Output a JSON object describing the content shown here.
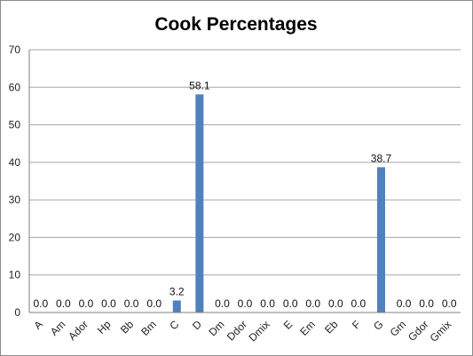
{
  "chart_data": {
    "type": "bar",
    "title": "Cook Percentages",
    "xlabel": "",
    "ylabel": "",
    "categories": [
      "A",
      "Am",
      "Ador",
      "Hp",
      "Bb",
      "Bm",
      "C",
      "D",
      "Dm",
      "Ddor",
      "Dmix",
      "E",
      "Em",
      "Eb",
      "F",
      "G",
      "Gm",
      "Gdor",
      "Gmix"
    ],
    "values": [
      0.0,
      0.0,
      0.0,
      0.0,
      0.0,
      0.0,
      3.2,
      58.1,
      0.0,
      0.0,
      0.0,
      0.0,
      0.0,
      0.0,
      0.0,
      38.7,
      0.0,
      0.0,
      0.0
    ],
    "data_labels": [
      "0.0",
      "0.0",
      "0.0",
      "0.0",
      "0.0",
      "0.0",
      "3.2",
      "58.1",
      "0.0",
      "0.0",
      "0.0",
      "0.0",
      "0.0",
      "0.0",
      "0.0",
      "38.7",
      "0.0",
      "0.0",
      "0.0"
    ],
    "ylim": [
      0,
      70
    ],
    "yticks": [
      "0",
      "10",
      "20",
      "30",
      "40",
      "50",
      "60",
      "70"
    ],
    "grid": true,
    "legend": "none",
    "bar_color": "#4f81bd"
  }
}
